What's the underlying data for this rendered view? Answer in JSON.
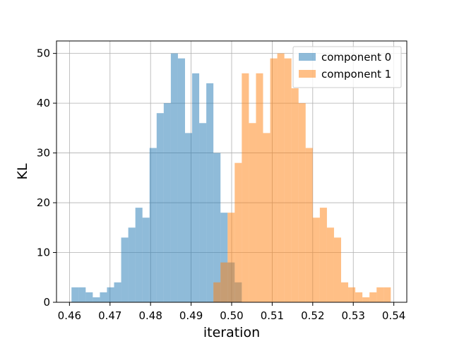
{
  "chart_data": {
    "type": "histogram",
    "xlabel": "iteration",
    "ylabel": "KL",
    "xlim": [
      0.4568,
      0.5432
    ],
    "ylim": [
      0,
      52.5
    ],
    "xticks": [
      "0.46",
      "0.47",
      "0.48",
      "0.49",
      "0.50",
      "0.51",
      "0.52",
      "0.53",
      "0.54"
    ],
    "yticks": [
      "0",
      "10",
      "20",
      "30",
      "40",
      "50"
    ],
    "grid": true,
    "legend_position": "top-right",
    "bin_width": 0.00175,
    "series": [
      {
        "name": "component 0",
        "color": "#1f77b4",
        "alpha": 0.5,
        "bin_start": 0.4605,
        "counts": [
          3,
          3,
          2,
          1,
          2,
          3,
          4,
          13,
          15,
          19,
          17,
          31,
          38,
          40,
          50,
          49,
          34,
          46,
          36,
          44,
          30,
          18,
          8,
          4
        ]
      },
      {
        "name": "component 1",
        "color": "#ff7f0e",
        "alpha": 0.5,
        "bin_start": 0.4955,
        "counts": [
          4,
          8,
          18,
          28,
          46,
          36,
          46,
          34,
          49,
          50,
          49,
          43,
          40,
          31,
          17,
          19,
          15,
          13,
          4,
          3,
          2,
          1,
          2,
          3,
          3
        ]
      }
    ]
  }
}
